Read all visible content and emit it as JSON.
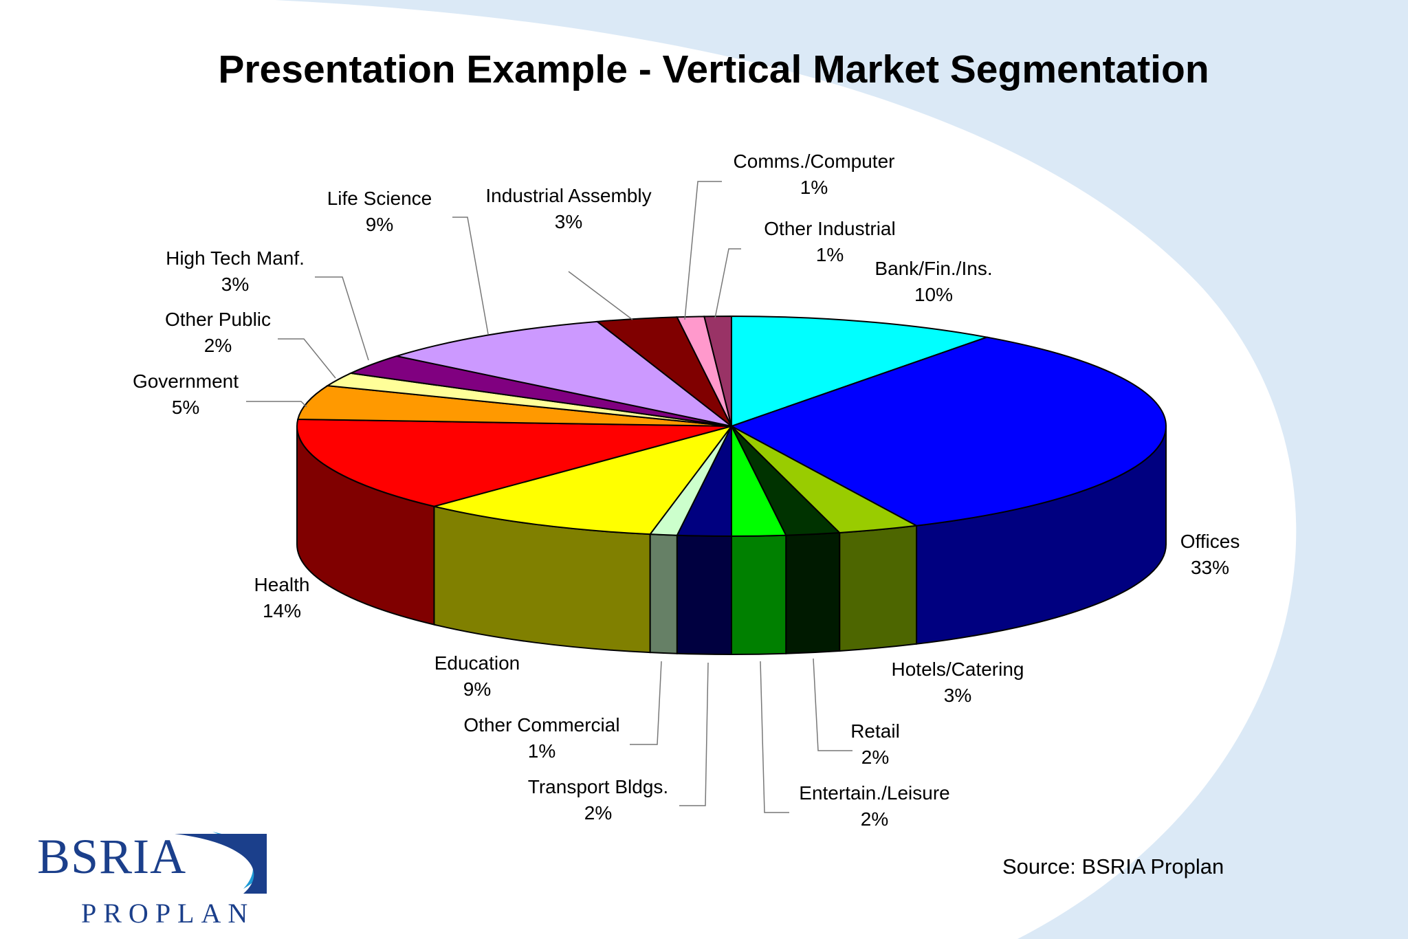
{
  "title": "Presentation Example - Vertical Market Segmentation",
  "source": "Source: BSRIA Proplan",
  "logo": {
    "main": "BSRIA",
    "sub": "PROPLAN",
    "color": "#1b3f8b",
    "accent": "#1e9ad6"
  },
  "background": {
    "swoosh_color": "#dbe9f6"
  },
  "chart_data": {
    "type": "pie",
    "style": "3d",
    "title": "Presentation Example - Vertical Market Segmentation",
    "slices": [
      {
        "name": "Bank/Fin./Ins.",
        "value": 10,
        "label": "10%",
        "color": "#00ffff"
      },
      {
        "name": "Offices",
        "value": 33,
        "label": "33%",
        "color": "#0000ff"
      },
      {
        "name": "Hotels/Catering",
        "value": 3,
        "label": "3%",
        "color": "#99cc00"
      },
      {
        "name": "Retail",
        "value": 2,
        "label": "2%",
        "color": "#003300"
      },
      {
        "name": "Entertain./Leisure",
        "value": 2,
        "label": "2%",
        "color": "#00ff00"
      },
      {
        "name": "Transport Bldgs.",
        "value": 2,
        "label": "2%",
        "color": "#000080"
      },
      {
        "name": "Other Commercial",
        "value": 1,
        "label": "1%",
        "color": "#ccffcc"
      },
      {
        "name": "Education",
        "value": 9,
        "label": "9%",
        "color": "#ffff00"
      },
      {
        "name": "Health",
        "value": 14,
        "label": "14%",
        "color": "#ff0000"
      },
      {
        "name": "Government",
        "value": 5,
        "label": "5%",
        "color": "#ff9900"
      },
      {
        "name": "Other Public",
        "value": 2,
        "label": "2%",
        "color": "#ffff99"
      },
      {
        "name": "High Tech Manf.",
        "value": 3,
        "label": "3%",
        "color": "#800080"
      },
      {
        "name": "Life Science",
        "value": 9,
        "label": "9%",
        "color": "#cc99ff"
      },
      {
        "name": "Industrial Assembly",
        "value": 3,
        "label": "3%",
        "color": "#800000"
      },
      {
        "name": "Comms./Computer",
        "value": 1,
        "label": "1%",
        "color": "#ff99cc"
      },
      {
        "name": "Other Industrial",
        "value": 1,
        "label": "1%",
        "color": "#993366"
      }
    ]
  }
}
